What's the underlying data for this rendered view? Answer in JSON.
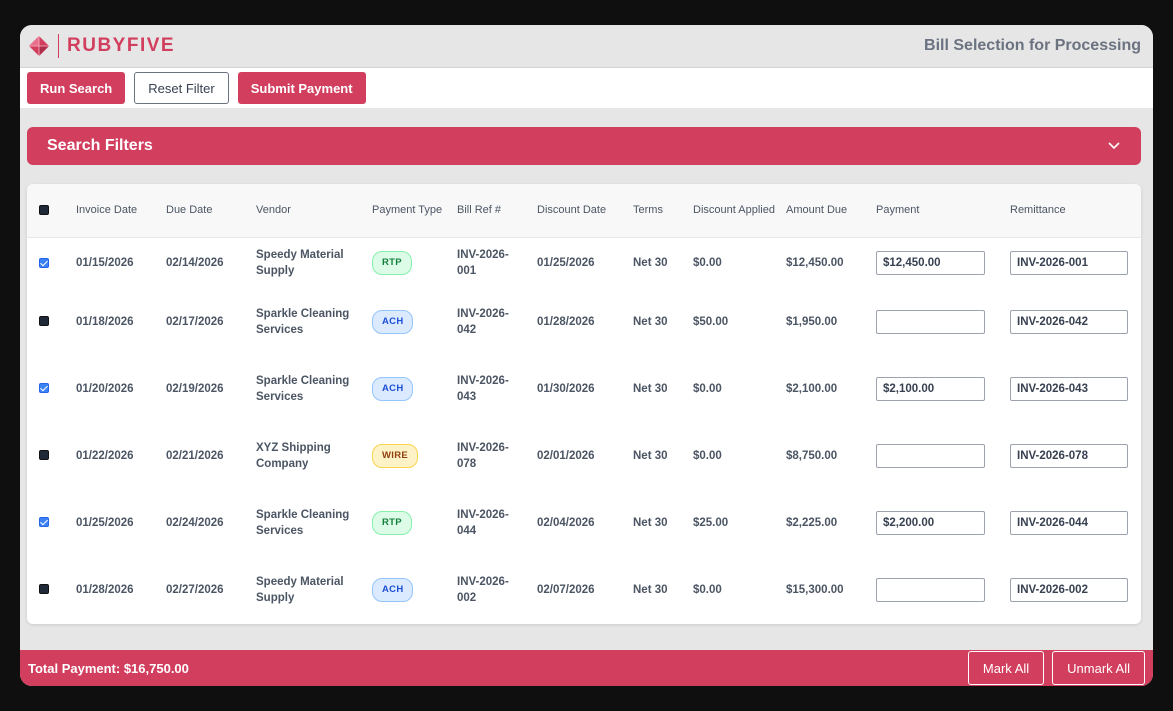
{
  "app": {
    "brand": "RUBYFIVE",
    "page_title": "Bill Selection for Processing",
    "brand_color": "#d23f5e"
  },
  "toolbar": {
    "run_search": "Run Search",
    "reset_filter": "Reset Filter",
    "submit_payment": "Submit Payment"
  },
  "filters": {
    "title": "Search Filters",
    "icon": "chevron-down-icon"
  },
  "table": {
    "columns": [
      "Invoice Date",
      "Due Date",
      "Vendor",
      "Payment Type",
      "Bill Ref #",
      "Discount Date",
      "Terms",
      "Discount Applied",
      "Amount Due",
      "Payment",
      "Remittance"
    ],
    "rows": [
      {
        "checked": true,
        "invoice_date": "01/15/2026",
        "due_date": "02/14/2026",
        "vendor": "Speedy Material Supply",
        "payment_type": "RTP",
        "bill_ref": "INV-2026-001",
        "discount_date": "01/25/2026",
        "terms": "Net 30",
        "discount_applied": "$0.00",
        "amount_due": "$12,450.00",
        "payment": "$12,450.00",
        "remittance": "INV-2026-001"
      },
      {
        "checked": false,
        "invoice_date": "01/18/2026",
        "due_date": "02/17/2026",
        "vendor": "Sparkle Cleaning Services",
        "payment_type": "ACH",
        "bill_ref": "INV-2026-042",
        "discount_date": "01/28/2026",
        "terms": "Net 30",
        "discount_applied": "$50.00",
        "amount_due": "$1,950.00",
        "payment": "",
        "remittance": "INV-2026-042"
      },
      {
        "checked": true,
        "invoice_date": "01/20/2026",
        "due_date": "02/19/2026",
        "vendor": "Sparkle Cleaning Services",
        "payment_type": "ACH",
        "bill_ref": "INV-2026-043",
        "discount_date": "01/30/2026",
        "terms": "Net 30",
        "discount_applied": "$0.00",
        "amount_due": "$2,100.00",
        "payment": "$2,100.00",
        "remittance": "INV-2026-043"
      },
      {
        "checked": false,
        "invoice_date": "01/22/2026",
        "due_date": "02/21/2026",
        "vendor": "XYZ Shipping Company",
        "payment_type": "WIRE",
        "bill_ref": "INV-2026-078",
        "discount_date": "02/01/2026",
        "terms": "Net 30",
        "discount_applied": "$0.00",
        "amount_due": "$8,750.00",
        "payment": "",
        "remittance": "INV-2026-078"
      },
      {
        "checked": true,
        "invoice_date": "01/25/2026",
        "due_date": "02/24/2026",
        "vendor": "Sparkle Cleaning Services",
        "payment_type": "RTP",
        "bill_ref": "INV-2026-044",
        "discount_date": "02/04/2026",
        "terms": "Net 30",
        "discount_applied": "$25.00",
        "amount_due": "$2,225.00",
        "payment": "$2,200.00",
        "remittance": "INV-2026-044"
      },
      {
        "checked": false,
        "invoice_date": "01/28/2026",
        "due_date": "02/27/2026",
        "vendor": "Speedy Material Supply",
        "payment_type": "ACH",
        "bill_ref": "INV-2026-002",
        "discount_date": "02/07/2026",
        "terms": "Net 30",
        "discount_applied": "$0.00",
        "amount_due": "$15,300.00",
        "payment": "",
        "remittance": "INV-2026-002"
      }
    ]
  },
  "footer": {
    "total_label": "Total Payment: $16,750.00",
    "mark_all": "Mark All",
    "unmark_all": "Unmark All"
  }
}
